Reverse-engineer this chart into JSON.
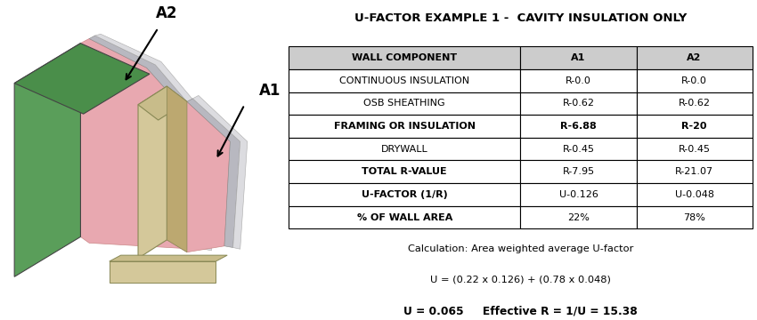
{
  "title": "U-FACTOR EXAMPLE 1 -  CAVITY INSULATION ONLY",
  "table_headers": [
    "WALL COMPONENT",
    "A1",
    "A2"
  ],
  "table_rows": [
    [
      "CONTINUOUS INSULATION",
      "R-0.0",
      "R-0.0"
    ],
    [
      "OSB SHEATHING",
      "R-0.62",
      "R-0.62"
    ],
    [
      "FRAMING OR INSULATION",
      "R-6.88",
      "R-20"
    ],
    [
      "DRYWALL",
      "R-0.45",
      "R-0.45"
    ],
    [
      "TOTAL R-VALUE",
      "R-7.95",
      "R-21.07"
    ],
    [
      "U-FACTOR (1/R)",
      "U-0.126",
      "U-0.048"
    ],
    [
      "% OF WALL AREA",
      "22%",
      "78%"
    ]
  ],
  "calc_line1": "Calculation: Area weighted average U-factor",
  "calc_line2": "U = (0.22 x 0.126) + (0.78 x 0.048)",
  "calc_line3_bold": "U = 0.065     Effective R = 1/U = 15.38",
  "header_bg": "#cccccc",
  "bg_white": "#ffffff",
  "border_color": "#000000",
  "color_green": "#5a9e5a",
  "color_green_top": "#4a8e4a",
  "color_green_side": "#3a7e3a",
  "color_pink": "#e8a8b0",
  "color_gray": "#b8b8c0",
  "color_gray_light": "#d0d0d8",
  "color_wood_face": "#d4c89a",
  "color_wood_top": "#c8bc8a",
  "color_wood_side": "#bca870"
}
